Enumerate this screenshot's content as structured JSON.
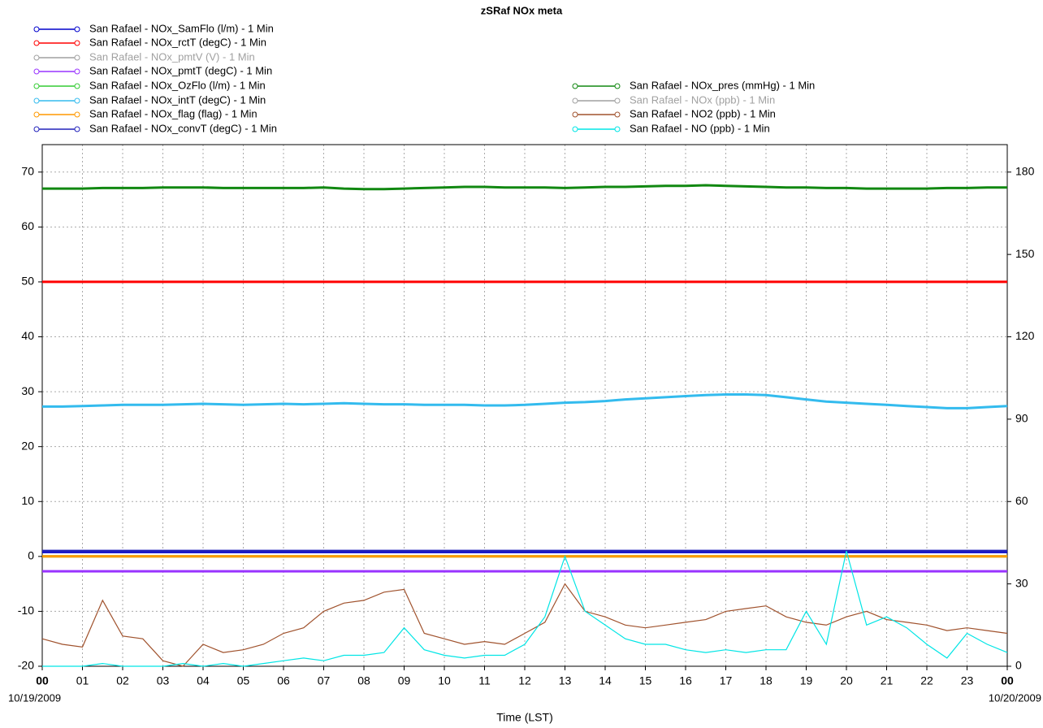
{
  "chart_data": {
    "type": "line",
    "title": "zSRaf NOx meta",
    "x_label": "Time (LST)",
    "date_labels": [
      "10/19/2009",
      "10/20/2009"
    ],
    "xlim": [
      0,
      24
    ],
    "xticks": [
      {
        "value": 0,
        "label": "00"
      },
      {
        "value": 1,
        "label": "01"
      },
      {
        "value": 2,
        "label": "02"
      },
      {
        "value": 3,
        "label": "03"
      },
      {
        "value": 4,
        "label": "04"
      },
      {
        "value": 5,
        "label": "05"
      },
      {
        "value": 6,
        "label": "06"
      },
      {
        "value": 7,
        "label": "07"
      },
      {
        "value": 8,
        "label": "08"
      },
      {
        "value": 9,
        "label": "09"
      },
      {
        "value": 10,
        "label": "10"
      },
      {
        "value": 11,
        "label": "11"
      },
      {
        "value": 12,
        "label": "12"
      },
      {
        "value": 13,
        "label": "13"
      },
      {
        "value": 14,
        "label": "14"
      },
      {
        "value": 15,
        "label": "15"
      },
      {
        "value": 16,
        "label": "16"
      },
      {
        "value": 17,
        "label": "17"
      },
      {
        "value": 18,
        "label": "18"
      },
      {
        "value": 19,
        "label": "19"
      },
      {
        "value": 20,
        "label": "20"
      },
      {
        "value": 21,
        "label": "21"
      },
      {
        "value": 22,
        "label": "22"
      },
      {
        "value": 23,
        "label": "23"
      },
      {
        "value": 24,
        "label": "00"
      }
    ],
    "ylim": [
      -20,
      75
    ],
    "yticks": [
      -20,
      -10,
      0,
      10,
      20,
      30,
      40,
      50,
      60,
      70
    ],
    "y2lim": [
      0,
      190
    ],
    "y2ticks": [
      0,
      30,
      60,
      90,
      120,
      150,
      180
    ],
    "grid": true,
    "x": [
      0,
      0.5,
      1,
      1.5,
      2,
      2.5,
      3,
      3.5,
      4,
      4.5,
      5,
      5.5,
      6,
      6.5,
      7,
      7.5,
      8,
      8.5,
      9,
      9.5,
      10,
      10.5,
      11,
      11.5,
      12,
      12.5,
      13,
      13.5,
      14,
      14.5,
      15,
      15.5,
      16,
      16.5,
      17,
      17.5,
      18,
      18.5,
      19,
      19.5,
      20,
      20.5,
      21,
      21.5,
      22,
      22.5,
      23,
      23.5,
      24
    ],
    "series": [
      {
        "name": "San Rafael - NOx_SamFlo (l/m) - 1 Min",
        "color": "#0000cc",
        "legend_column": "left",
        "values": [
          0.8,
          0.8,
          0.8,
          0.8,
          0.8,
          0.8,
          0.8,
          0.8,
          0.8,
          0.8,
          0.8,
          0.8,
          0.8,
          0.8,
          0.8,
          0.8,
          0.8,
          0.8,
          0.8,
          0.8,
          0.8,
          0.8,
          0.8,
          0.8,
          0.8,
          0.8,
          0.8,
          0.8,
          0.8,
          0.8,
          0.8,
          0.8,
          0.8,
          0.8,
          0.8,
          0.8,
          0.8,
          0.8,
          0.8,
          0.8,
          0.8,
          0.8,
          0.8,
          0.8,
          0.8,
          0.8,
          0.8,
          0.8,
          0.8
        ]
      },
      {
        "name": "San Rafael - NOx_rctT (degC) - 1 Min",
        "color": "#ff0000",
        "legend_column": "left",
        "values": [
          50,
          50,
          50,
          50,
          50,
          50,
          50,
          50,
          50,
          50,
          50,
          50,
          50,
          50,
          50,
          50,
          50,
          50,
          50,
          50,
          50,
          50,
          50,
          50,
          50,
          50,
          50,
          50,
          50,
          50,
          50,
          50,
          50,
          50,
          50,
          50,
          50,
          50,
          50,
          50,
          50,
          50,
          50,
          50,
          50,
          50,
          50,
          50,
          50
        ]
      },
      {
        "name": "San Rafael - NOx_pmtV (V) - 1 Min",
        "color": "#a0a0a0",
        "legend_column": "left",
        "hidden": true,
        "values": [
          null,
          null,
          null,
          null,
          null,
          null,
          null,
          null,
          null,
          null,
          null,
          null,
          null,
          null,
          null,
          null,
          null,
          null,
          null,
          null,
          null,
          null,
          null,
          null,
          null,
          null,
          null,
          null,
          null,
          null,
          null,
          null,
          null,
          null,
          null,
          null,
          null,
          null,
          null,
          null,
          null,
          null,
          null,
          null,
          null,
          null,
          null,
          null,
          null
        ]
      },
      {
        "name": "San Rafael - NOx_pmtT (degC) - 1 Min",
        "color": "#9933ff",
        "legend_column": "left",
        "values": [
          -2.7,
          -2.7,
          -2.7,
          -2.7,
          -2.7,
          -2.7,
          -2.7,
          -2.7,
          -2.7,
          -2.7,
          -2.7,
          -2.7,
          -2.7,
          -2.7,
          -2.7,
          -2.7,
          -2.7,
          -2.7,
          -2.7,
          -2.7,
          -2.7,
          -2.7,
          -2.7,
          -2.7,
          -2.7,
          -2.7,
          -2.7,
          -2.7,
          -2.7,
          -2.7,
          -2.7,
          -2.7,
          -2.7,
          -2.7,
          -2.7,
          -2.7,
          -2.7,
          -2.7,
          -2.7,
          -2.7,
          -2.7,
          -2.7,
          -2.7,
          -2.7,
          -2.7,
          -2.7,
          -2.7,
          -2.7,
          -2.7
        ]
      },
      {
        "name": "San Rafael - NOx_OzFlo (l/m) - 1 Min",
        "color": "#33cc33",
        "legend_column": "left",
        "values": [
          0,
          0,
          0,
          0,
          0,
          0,
          0,
          0,
          0,
          0,
          0,
          0,
          0,
          0,
          0,
          0,
          0,
          0,
          0,
          0,
          0,
          0,
          0,
          0,
          0,
          0,
          0,
          0,
          0,
          0,
          0,
          0,
          0,
          0,
          0,
          0,
          0,
          0,
          0,
          0,
          0,
          0,
          0,
          0,
          0,
          0,
          0,
          0,
          0
        ]
      },
      {
        "name": "San Rafael - NOx_intT (degC) - 1 Min",
        "color": "#33bbee",
        "legend_column": "left",
        "values": [
          27.3,
          27.3,
          27.4,
          27.5,
          27.6,
          27.6,
          27.6,
          27.7,
          27.8,
          27.7,
          27.6,
          27.7,
          27.8,
          27.7,
          27.8,
          27.9,
          27.8,
          27.7,
          27.7,
          27.6,
          27.6,
          27.6,
          27.5,
          27.5,
          27.6,
          27.8,
          28.0,
          28.1,
          28.3,
          28.6,
          28.8,
          29.0,
          29.2,
          29.4,
          29.5,
          29.5,
          29.4,
          29.0,
          28.6,
          28.2,
          28.0,
          27.8,
          27.6,
          27.4,
          27.2,
          27.0,
          27.0,
          27.2,
          27.4
        ]
      },
      {
        "name": "San Rafael - NOx_flag (flag) - 1 Min",
        "color": "#ff9900",
        "legend_column": "left",
        "values": [
          0,
          0,
          0,
          0,
          0,
          0,
          0,
          0,
          0,
          0,
          0,
          0,
          0,
          0,
          0,
          0,
          0,
          0,
          0,
          0,
          0,
          0,
          0,
          0,
          0,
          0,
          0,
          0,
          0,
          0,
          0,
          0,
          0,
          0,
          0,
          0,
          0,
          0,
          0,
          0,
          0,
          0,
          0,
          0,
          0,
          0,
          0,
          0,
          0
        ]
      },
      {
        "name": "San Rafael - NOx_convT (degC) - 1 Min",
        "color": "#2222bb",
        "legend_column": "left",
        "values": [
          1,
          1,
          1,
          1,
          1,
          1,
          1,
          1,
          1,
          1,
          1,
          1,
          1,
          1,
          1,
          1,
          1,
          1,
          1,
          1,
          1,
          1,
          1,
          1,
          1,
          1,
          1,
          1,
          1,
          1,
          1,
          1,
          1,
          1,
          1,
          1,
          1,
          1,
          1,
          1,
          1,
          1,
          1,
          1,
          1,
          1,
          1,
          1,
          1
        ]
      },
      {
        "name": "San Rafael - NOx_pres (mmHg) - 1 Min",
        "color": "#118811",
        "legend_column": "right",
        "values": [
          67,
          67,
          67,
          67.1,
          67.1,
          67.1,
          67.2,
          67.2,
          67.2,
          67.1,
          67.1,
          67.1,
          67.1,
          67.1,
          67.2,
          67.0,
          66.9,
          66.9,
          67.0,
          67.1,
          67.2,
          67.3,
          67.3,
          67.2,
          67.2,
          67.2,
          67.1,
          67.2,
          67.3,
          67.3,
          67.4,
          67.5,
          67.5,
          67.6,
          67.5,
          67.4,
          67.3,
          67.2,
          67.2,
          67.1,
          67.1,
          67.0,
          67.0,
          67.0,
          67.0,
          67.1,
          67.1,
          67.2,
          67.2
        ]
      },
      {
        "name": "San Rafael - NOx (ppb) - 1 Min",
        "color": "#a0a0a0",
        "legend_column": "right",
        "hidden": true,
        "axis": "y2",
        "values": [
          null,
          null,
          null,
          null,
          null,
          null,
          null,
          null,
          null,
          null,
          null,
          null,
          null,
          null,
          null,
          null,
          null,
          null,
          null,
          null,
          null,
          null,
          null,
          null,
          null,
          null,
          null,
          null,
          null,
          null,
          null,
          null,
          null,
          null,
          null,
          null,
          null,
          null,
          null,
          null,
          null,
          null,
          null,
          null,
          null,
          null,
          null,
          null,
          null
        ]
      },
      {
        "name": "San Rafael - NO2 (ppb) - 1 Min",
        "color": "#a0522d",
        "legend_column": "right",
        "axis": "y2",
        "values": [
          10,
          8,
          7,
          24,
          11,
          10,
          2,
          0,
          8,
          5,
          6,
          8,
          12,
          14,
          20,
          23,
          24,
          27,
          28,
          12,
          10,
          8,
          9,
          8,
          12,
          16,
          30,
          20,
          18,
          15,
          14,
          15,
          16,
          17,
          20,
          21,
          22,
          18,
          16,
          15,
          18,
          20,
          17,
          16,
          15,
          13,
          14,
          13,
          12
        ]
      },
      {
        "name": "San Rafael - NO (ppb) - 1 Min",
        "color": "#00e5e5",
        "legend_column": "right",
        "axis": "y2",
        "values": [
          0,
          0,
          0,
          1,
          0,
          0,
          0,
          1,
          0,
          1,
          0,
          1,
          2,
          3,
          2,
          4,
          4,
          5,
          14,
          6,
          4,
          3,
          4,
          4,
          8,
          18,
          40,
          20,
          15,
          10,
          8,
          8,
          6,
          5,
          6,
          5,
          6,
          6,
          20,
          8,
          42,
          15,
          18,
          14,
          8,
          3,
          12,
          8,
          5
        ]
      }
    ]
  }
}
